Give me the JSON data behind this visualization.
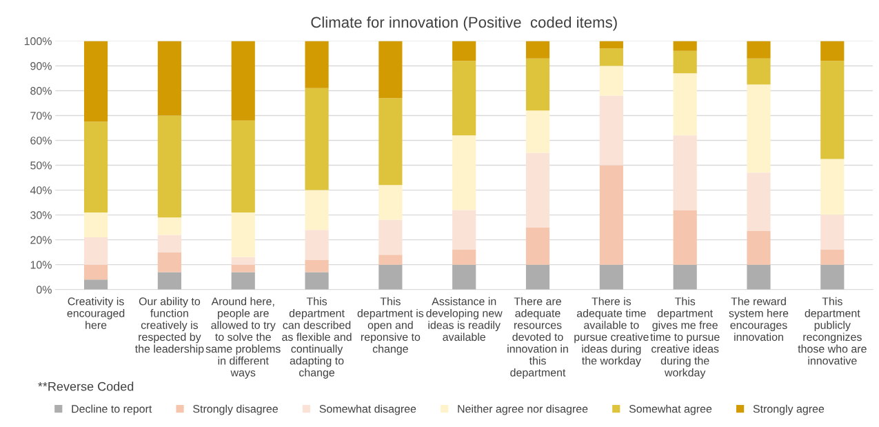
{
  "chart_data": {
    "type": "bar",
    "title": "Climate for innovation (Positive  coded items)",
    "stacked": true,
    "categories": [
      "Creativity is\nencouraged\nhere",
      "Our ability to\nfunction\ncreatively is\nrespected by\nthe leadership",
      "Around here,\npeople are\nallowed to try\nto solve the\nsame problems\nin different\nways",
      "This\ndepartment\ncan described\nas flexible and\ncontinually\nadapting to\nchange",
      "This\ndepartment is\nopen and\nreponsive to\nchange",
      "Assistance in\ndeveloping new\nideas is readily\navailable",
      "There are\nadequate\nresources\ndevoted to\ninnovation in\nthis\ndepartment",
      "There is\nadequate time\navailable to\npursue creative\nideas during\nthe workday",
      "This\ndepartment\ngives me free\ntime to pursue\ncreative ideas\nduring the\nworkday",
      "The reward\nsystem here\nencourages\ninnovation",
      "This\ndepartment\npublicly\nrecongnizes\nthose who are\ninnovative"
    ],
    "series": [
      {
        "name": "Decline to report",
        "color": "#adadad",
        "values": [
          4,
          7,
          7,
          7,
          10,
          10,
          10,
          10,
          10,
          10,
          10
        ]
      },
      {
        "name": "Strongly disagree",
        "color": "#f5c6ad",
        "values": [
          6,
          8,
          3,
          5,
          4,
          6,
          15,
          40,
          22,
          13.5,
          6
        ]
      },
      {
        "name": "Somewhat disagree",
        "color": "#fbe2d7",
        "values": [
          11,
          7,
          3,
          12,
          14,
          16,
          30,
          28,
          30,
          23.5,
          14
        ]
      },
      {
        "name": "Neither agree nor disagree",
        "color": "#fff3cc",
        "values": [
          10,
          7,
          18,
          16,
          14,
          30,
          17,
          12,
          25,
          35.5,
          22.5
        ]
      },
      {
        "name": "Somewhat agree",
        "color": "#dec33c",
        "values": [
          36.5,
          41,
          37,
          41,
          35,
          30,
          21,
          7,
          9,
          10.5,
          39.5
        ]
      },
      {
        "name": "Strongly agree",
        "color": "#d29b02",
        "values": [
          32.5,
          30,
          32,
          19,
          23,
          8,
          7,
          3,
          4,
          7,
          8
        ]
      }
    ],
    "ylim": [
      0,
      100
    ],
    "yticks": [
      {
        "value": 0,
        "label": "0%"
      },
      {
        "value": 10,
        "label": "10%"
      },
      {
        "value": 20,
        "label": "20%"
      },
      {
        "value": 30,
        "label": "30%"
      },
      {
        "value": 40,
        "label": "40%"
      },
      {
        "value": 50,
        "label": "50%"
      },
      {
        "value": 60,
        "label": "60%"
      },
      {
        "value": 70,
        "label": "70%"
      },
      {
        "value": 80,
        "label": "80%"
      },
      {
        "value": 90,
        "label": "90%"
      },
      {
        "value": 100,
        "label": "100%"
      }
    ],
    "grid": "y",
    "legend": "bottom",
    "annotations": [
      "**Reverse Coded"
    ]
  }
}
